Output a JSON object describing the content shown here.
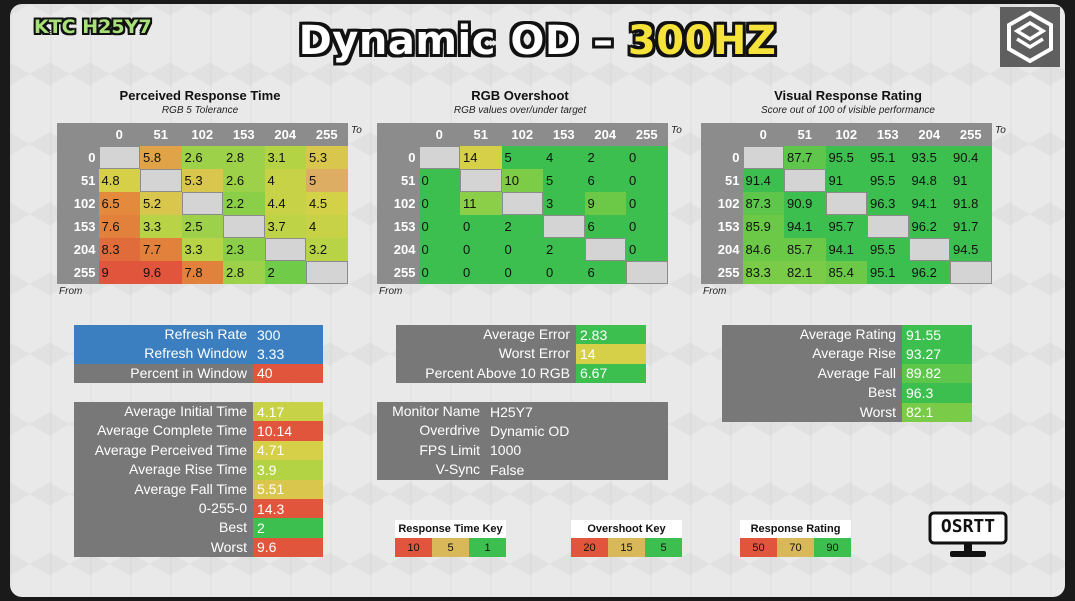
{
  "header": {
    "brand": "KTC H25Y7",
    "title_main": "Dynamic OD – ",
    "title_accent": "300HZ",
    "osrtt_label": "OSRTT"
  },
  "axis": {
    "to": "To",
    "from": "From"
  },
  "levels": [
    "0",
    "51",
    "102",
    "153",
    "204",
    "255"
  ],
  "perceived": {
    "title": "Perceived Response Time",
    "subtitle": "RGB 5 Tolerance",
    "rows": [
      [
        {
          "v": "",
          "c": ""
        },
        {
          "v": "5.8",
          "c": "#e0a347"
        },
        {
          "v": "2.6",
          "c": "#9ed14a"
        },
        {
          "v": "2.8",
          "c": "#9ed14a"
        },
        {
          "v": "3.1",
          "c": "#b3d345"
        },
        {
          "v": "5.3",
          "c": "#d9c64c"
        }
      ],
      [
        {
          "v": "4.8",
          "c": "#d6cf48"
        },
        {
          "v": "",
          "c": ""
        },
        {
          "v": "5.3",
          "c": "#d9c64c"
        },
        {
          "v": "2.6",
          "c": "#9ed14a"
        },
        {
          "v": "4",
          "c": "#c8d246"
        },
        {
          "v": "5",
          "c": "#dcad62"
        }
      ],
      [
        {
          "v": "6.5",
          "c": "#e48a3c"
        },
        {
          "v": "5.2",
          "c": "#d9c64c"
        },
        {
          "v": "",
          "c": ""
        },
        {
          "v": "2.2",
          "c": "#8bcf48"
        },
        {
          "v": "4.4",
          "c": "#c8d246"
        },
        {
          "v": "4.5",
          "c": "#d2d147"
        }
      ],
      [
        {
          "v": "7.6",
          "c": "#e2813c"
        },
        {
          "v": "3.3",
          "c": "#b9d346"
        },
        {
          "v": "2.5",
          "c": "#9ed14a"
        },
        {
          "v": "",
          "c": ""
        },
        {
          "v": "3.7",
          "c": "#bfd346"
        },
        {
          "v": "4",
          "c": "#c8d246"
        }
      ],
      [
        {
          "v": "8.3",
          "c": "#e06c3b"
        },
        {
          "v": "7.7",
          "c": "#e2813c"
        },
        {
          "v": "3.3",
          "c": "#b9d346"
        },
        {
          "v": "2.3",
          "c": "#8bcf48"
        },
        {
          "v": "",
          "c": ""
        },
        {
          "v": "3.2",
          "c": "#b9d346"
        }
      ],
      [
        {
          "v": "9",
          "c": "#e0553b"
        },
        {
          "v": "9.6",
          "c": "#e0553b"
        },
        {
          "v": "7.8",
          "c": "#e2813c"
        },
        {
          "v": "2.8",
          "c": "#9ed14a"
        },
        {
          "v": "2",
          "c": "#6fcb48"
        },
        {
          "v": "",
          "c": ""
        }
      ]
    ]
  },
  "overshoot": {
    "title": "RGB Overshoot",
    "subtitle": "RGB values over/under target",
    "rows": [
      [
        {
          "v": "",
          "c": ""
        },
        {
          "v": "14",
          "c": "#d6cf48"
        },
        {
          "v": "5",
          "c": "#3cbf4f"
        },
        {
          "v": "4",
          "c": "#3cbf4f"
        },
        {
          "v": "2",
          "c": "#3cbf4f"
        },
        {
          "v": "0",
          "c": "#3cbf4f"
        }
      ],
      [
        {
          "v": "0",
          "c": "#3cbf4f"
        },
        {
          "v": "",
          "c": ""
        },
        {
          "v": "10",
          "c": "#7ccc48"
        },
        {
          "v": "5",
          "c": "#3cbf4f"
        },
        {
          "v": "6",
          "c": "#3cbf4f"
        },
        {
          "v": "0",
          "c": "#3cbf4f"
        }
      ],
      [
        {
          "v": "0",
          "c": "#3cbf4f"
        },
        {
          "v": "11",
          "c": "#8bcf48"
        },
        {
          "v": "",
          "c": ""
        },
        {
          "v": "3",
          "c": "#3cbf4f"
        },
        {
          "v": "9",
          "c": "#6cc948"
        },
        {
          "v": "0",
          "c": "#3cbf4f"
        }
      ],
      [
        {
          "v": "0",
          "c": "#3cbf4f"
        },
        {
          "v": "0",
          "c": "#3cbf4f"
        },
        {
          "v": "2",
          "c": "#3cbf4f"
        },
        {
          "v": "",
          "c": ""
        },
        {
          "v": "6",
          "c": "#3cbf4f"
        },
        {
          "v": "0",
          "c": "#3cbf4f"
        }
      ],
      [
        {
          "v": "0",
          "c": "#3cbf4f"
        },
        {
          "v": "0",
          "c": "#3cbf4f"
        },
        {
          "v": "0",
          "c": "#3cbf4f"
        },
        {
          "v": "2",
          "c": "#3cbf4f"
        },
        {
          "v": "",
          "c": ""
        },
        {
          "v": "0",
          "c": "#3cbf4f"
        }
      ],
      [
        {
          "v": "0",
          "c": "#3cbf4f"
        },
        {
          "v": "0",
          "c": "#3cbf4f"
        },
        {
          "v": "0",
          "c": "#3cbf4f"
        },
        {
          "v": "0",
          "c": "#3cbf4f"
        },
        {
          "v": "6",
          "c": "#3cbf4f"
        },
        {
          "v": "",
          "c": ""
        }
      ]
    ]
  },
  "visual": {
    "title": "Visual Response Rating",
    "subtitle": "Score out of 100 of visible performance",
    "rows": [
      [
        {
          "v": "",
          "c": ""
        },
        {
          "v": "87.7",
          "c": "#5dc64b"
        },
        {
          "v": "95.5",
          "c": "#3cbf4f"
        },
        {
          "v": "95.1",
          "c": "#3cbf4f"
        },
        {
          "v": "93.5",
          "c": "#3cbf4f"
        },
        {
          "v": "90.4",
          "c": "#3cbf4f"
        }
      ],
      [
        {
          "v": "91.4",
          "c": "#3cbf4f"
        },
        {
          "v": "",
          "c": ""
        },
        {
          "v": "91",
          "c": "#3cbf4f"
        },
        {
          "v": "95.5",
          "c": "#3cbf4f"
        },
        {
          "v": "94.8",
          "c": "#3cbf4f"
        },
        {
          "v": "91",
          "c": "#3cbf4f"
        }
      ],
      [
        {
          "v": "87.3",
          "c": "#5dc64b"
        },
        {
          "v": "90.9",
          "c": "#3cbf4f"
        },
        {
          "v": "",
          "c": ""
        },
        {
          "v": "96.3",
          "c": "#3cbf4f"
        },
        {
          "v": "94.1",
          "c": "#3cbf4f"
        },
        {
          "v": "91.8",
          "c": "#3cbf4f"
        }
      ],
      [
        {
          "v": "85.9",
          "c": "#6cc948"
        },
        {
          "v": "94.1",
          "c": "#3cbf4f"
        },
        {
          "v": "95.7",
          "c": "#3cbf4f"
        },
        {
          "v": "",
          "c": ""
        },
        {
          "v": "96.2",
          "c": "#3cbf4f"
        },
        {
          "v": "91.7",
          "c": "#3cbf4f"
        }
      ],
      [
        {
          "v": "84.6",
          "c": "#6cc948"
        },
        {
          "v": "85.7",
          "c": "#6cc948"
        },
        {
          "v": "94.1",
          "c": "#3cbf4f"
        },
        {
          "v": "95.5",
          "c": "#3cbf4f"
        },
        {
          "v": "",
          "c": ""
        },
        {
          "v": "94.5",
          "c": "#3cbf4f"
        }
      ],
      [
        {
          "v": "83.3",
          "c": "#79cb48"
        },
        {
          "v": "82.1",
          "c": "#79cb48"
        },
        {
          "v": "85.4",
          "c": "#6cc948"
        },
        {
          "v": "95.1",
          "c": "#3cbf4f"
        },
        {
          "v": "96.2",
          "c": "#3cbf4f"
        },
        {
          "v": "",
          "c": ""
        }
      ]
    ]
  },
  "refresh": [
    {
      "label": "Refresh Rate",
      "value": "300",
      "lc": "#3b7fc0",
      "vc": "#3b7fc0"
    },
    {
      "label": "Refresh Window",
      "value": "3.33",
      "lc": "#3b7fc0",
      "vc": "#3b7fc0"
    },
    {
      "label": "Percent in Window",
      "value": "40",
      "lc": "#787878",
      "vc": "#e0553b"
    }
  ],
  "response_stats": [
    {
      "label": "Average Initial Time",
      "value": "4.17",
      "vc": "#c8d246"
    },
    {
      "label": "Average Complete Time",
      "value": "10.14",
      "vc": "#e0553b"
    },
    {
      "label": "Average Perceived Time",
      "value": "4.71",
      "vc": "#d6cf48"
    },
    {
      "label": "Average Rise Time",
      "value": "3.9",
      "vc": "#b3d345"
    },
    {
      "label": "Average Fall Time",
      "value": "5.51",
      "vc": "#d9c64c"
    },
    {
      "label": "0-255-0",
      "value": "14.3",
      "vc": "#e0553b"
    },
    {
      "label": "Best",
      "value": "2",
      "vc": "#3cbf4f"
    },
    {
      "label": "Worst",
      "value": "9.6",
      "vc": "#e0553b"
    }
  ],
  "error_stats": [
    {
      "label": "Average Error",
      "value": "2.83",
      "vc": "#3cbf4f"
    },
    {
      "label": "Worst Error",
      "value": "14",
      "vc": "#d6cf48"
    },
    {
      "label": "Percent Above 10 RGB",
      "value": "6.67",
      "vc": "#3cbf4f"
    }
  ],
  "monitor_info": [
    {
      "label": "Monitor Name",
      "value": "H25Y7"
    },
    {
      "label": "Overdrive",
      "value": "Dynamic OD"
    },
    {
      "label": "FPS Limit",
      "value": "1000"
    },
    {
      "label": "V-Sync",
      "value": "False"
    }
  ],
  "rating_stats": [
    {
      "label": "Average Rating",
      "value": "91.55",
      "vc": "#3cbf4f"
    },
    {
      "label": "Average Rise",
      "value": "93.27",
      "vc": "#3cbf4f"
    },
    {
      "label": "Average Fall",
      "value": "89.82",
      "vc": "#5dc64b"
    },
    {
      "label": "Best",
      "value": "96.3",
      "vc": "#3cbf4f"
    },
    {
      "label": "Worst",
      "value": "82.1",
      "vc": "#79cb48"
    }
  ],
  "keys": [
    {
      "title": "Response Time Key",
      "items": [
        {
          "v": "10",
          "c": "#e0553b"
        },
        {
          "v": "5",
          "c": "#d9b85a"
        },
        {
          "v": "1",
          "c": "#3cbf4f"
        }
      ]
    },
    {
      "title": "Overshoot Key",
      "items": [
        {
          "v": "20",
          "c": "#e0553b"
        },
        {
          "v": "15",
          "c": "#d9b85a"
        },
        {
          "v": "5",
          "c": "#3cbf4f"
        }
      ]
    },
    {
      "title": "Response Rating Key",
      "items": [
        {
          "v": "50",
          "c": "#e0553b"
        },
        {
          "v": "70",
          "c": "#d9b85a"
        },
        {
          "v": "90",
          "c": "#3cbf4f"
        }
      ]
    }
  ]
}
